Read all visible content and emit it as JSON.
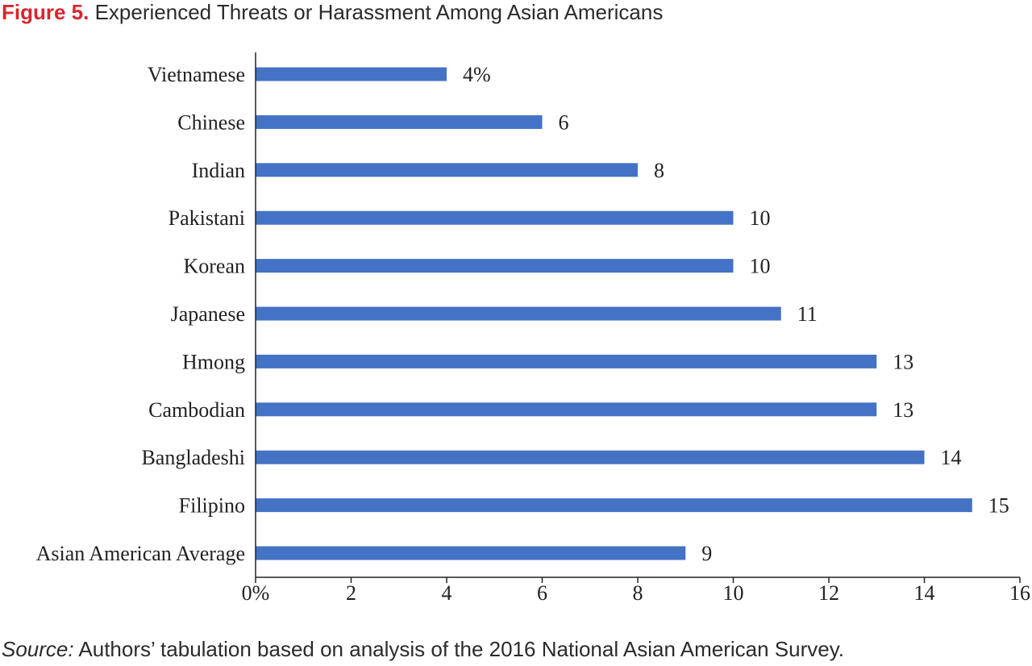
{
  "figure": {
    "label": "Figure 5.",
    "title": "Experienced Threats or Harassment Among Asian Americans",
    "label_color": "#d7262e",
    "source_label": "Source:",
    "source_text": "Authors’ tabulation based on analysis of the 2016 National Asian American Survey."
  },
  "chart_data": {
    "type": "bar",
    "orientation": "horizontal",
    "title": "Experienced Threats or Harassment Among Asian Americans",
    "categories": [
      "Vietnamese",
      "Chinese",
      "Indian",
      "Pakistani",
      "Korean",
      "Japanese",
      "Hmong",
      "Cambodian",
      "Bangladeshi",
      "Filipino",
      "Asian American Average"
    ],
    "values": [
      4,
      6,
      8,
      10,
      10,
      11,
      13,
      13,
      14,
      15,
      9
    ],
    "value_labels": [
      "4%",
      "6",
      "8",
      "10",
      "10",
      "11",
      "13",
      "13",
      "14",
      "15",
      "9"
    ],
    "xlim": [
      0,
      16
    ],
    "x_ticks": [
      0,
      2,
      4,
      6,
      8,
      10,
      12,
      14,
      16
    ],
    "x_tick_labels": [
      "0%",
      "2",
      "4",
      "6",
      "8",
      "10",
      "12",
      "14",
      "16"
    ],
    "xlabel": "",
    "ylabel": "",
    "grid": false,
    "bar_color": "#4472c4"
  }
}
